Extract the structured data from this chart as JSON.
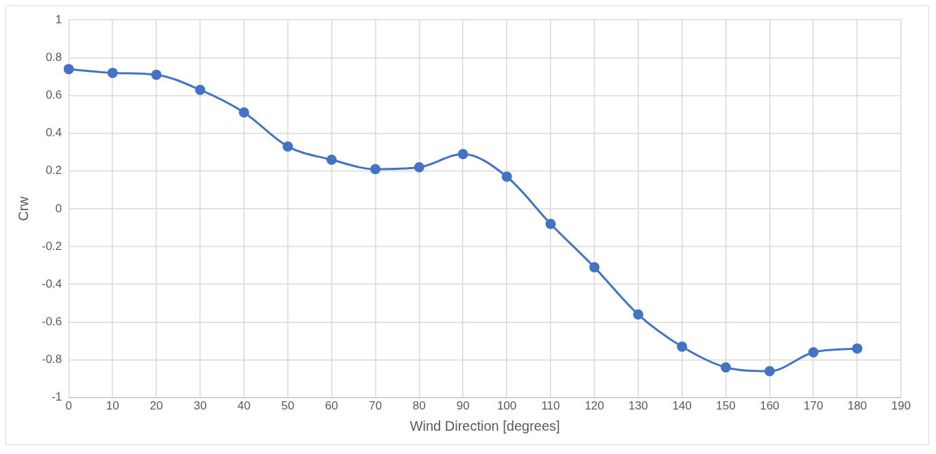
{
  "chart_data": {
    "type": "line",
    "xlabel": "Wind Direction [degrees]",
    "ylabel": "Crw",
    "x": [
      0,
      10,
      20,
      30,
      40,
      50,
      60,
      70,
      80,
      90,
      100,
      110,
      120,
      130,
      140,
      150,
      160,
      170,
      180
    ],
    "series": [
      {
        "color": "#4472c4",
        "values": [
          0.74,
          0.72,
          0.71,
          0.63,
          0.51,
          0.33,
          0.26,
          0.21,
          0.22,
          0.29,
          0.17,
          -0.08,
          -0.31,
          -0.56,
          -0.73,
          -0.84,
          -0.86,
          -0.76,
          -0.74
        ]
      }
    ],
    "xlim": [
      0,
      190
    ],
    "xticks": [
      0,
      10,
      20,
      30,
      40,
      50,
      60,
      70,
      80,
      90,
      100,
      110,
      120,
      130,
      140,
      150,
      160,
      170,
      180,
      190
    ],
    "ylim": [
      -1,
      1
    ],
    "yticks": [
      -1,
      -0.8,
      -0.6,
      -0.4,
      -0.2,
      0,
      0.2,
      0.4,
      0.6,
      0.8,
      1
    ],
    "grid": true,
    "legend": false,
    "marker": "circle",
    "line_style": "solid"
  }
}
